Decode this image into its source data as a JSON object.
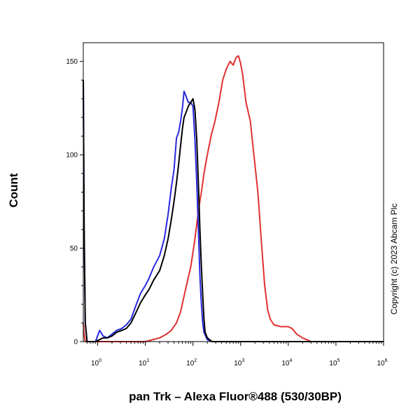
{
  "chart_data": {
    "type": "line",
    "ylabel": "Count",
    "xlabel": "pan Trk – Alexa Fluor®488 (530/30BP)",
    "copyright": "Copyright (c) 2023 Abcam Plc",
    "x_scale": "log",
    "xlim": [
      0.5,
      1000000
    ],
    "ylim": [
      0,
      160
    ],
    "y_ticks": [
      0,
      50,
      100,
      150
    ],
    "x_ticks": [
      {
        "value": 1,
        "base": "10",
        "exp": "0"
      },
      {
        "value": 10,
        "base": "10",
        "exp": "1"
      },
      {
        "value": 100,
        "base": "10",
        "exp": "2"
      },
      {
        "value": 1000,
        "base": "10",
        "exp": "3"
      },
      {
        "value": 10000,
        "base": "10",
        "exp": "4"
      },
      {
        "value": 100000,
        "base": "10",
        "exp": "5"
      },
      {
        "value": 1000000,
        "base": "10",
        "exp": "6"
      }
    ],
    "grid": false,
    "series": [
      {
        "color": "#e03030",
        "points": [
          [
            0.5,
            10
          ],
          [
            0.52,
            4
          ],
          [
            0.55,
            0
          ],
          [
            3,
            0
          ],
          [
            6,
            0
          ],
          [
            10,
            0
          ],
          [
            20,
            2
          ],
          [
            28,
            4
          ],
          [
            35,
            6
          ],
          [
            45,
            10
          ],
          [
            55,
            16
          ],
          [
            70,
            28
          ],
          [
            90,
            40
          ],
          [
            110,
            55
          ],
          [
            130,
            70
          ],
          [
            150,
            80
          ],
          [
            170,
            90
          ],
          [
            200,
            100
          ],
          [
            240,
            110
          ],
          [
            290,
            118
          ],
          [
            350,
            128
          ],
          [
            420,
            140
          ],
          [
            500,
            146
          ],
          [
            600,
            150
          ],
          [
            700,
            148
          ],
          [
            800,
            152
          ],
          [
            900,
            153
          ],
          [
            1000,
            149
          ],
          [
            1100,
            143
          ],
          [
            1300,
            128
          ],
          [
            1600,
            118
          ],
          [
            1900,
            100
          ],
          [
            2300,
            80
          ],
          [
            2700,
            55
          ],
          [
            3200,
            30
          ],
          [
            3700,
            17
          ],
          [
            4200,
            12
          ],
          [
            5000,
            9
          ],
          [
            7000,
            8
          ],
          [
            10000,
            8
          ],
          [
            12000,
            7
          ],
          [
            15000,
            4
          ],
          [
            20000,
            2
          ],
          [
            30000,
            0
          ],
          [
            100000,
            0
          ]
        ]
      },
      {
        "color": "#2828e0",
        "points": [
          [
            0.5,
            140
          ],
          [
            0.52,
            60
          ],
          [
            0.55,
            10
          ],
          [
            0.6,
            0
          ],
          [
            0.9,
            0
          ],
          [
            1.1,
            6
          ],
          [
            1.3,
            3
          ],
          [
            1.6,
            2
          ],
          [
            2,
            4
          ],
          [
            2.5,
            6
          ],
          [
            3.2,
            7
          ],
          [
            4,
            9
          ],
          [
            5,
            12
          ],
          [
            6.5,
            20
          ],
          [
            8,
            26
          ],
          [
            10,
            30
          ],
          [
            12,
            34
          ],
          [
            15,
            40
          ],
          [
            20,
            46
          ],
          [
            25,
            55
          ],
          [
            30,
            68
          ],
          [
            35,
            82
          ],
          [
            40,
            92
          ],
          [
            45,
            109
          ],
          [
            50,
            112
          ],
          [
            55,
            118
          ],
          [
            60,
            125
          ],
          [
            65,
            134
          ],
          [
            70,
            132
          ],
          [
            80,
            128
          ],
          [
            90,
            128
          ],
          [
            100,
            126
          ],
          [
            110,
            108
          ],
          [
            120,
            85
          ],
          [
            130,
            60
          ],
          [
            140,
            35
          ],
          [
            150,
            20
          ],
          [
            160,
            10
          ],
          [
            170,
            5
          ],
          [
            200,
            1
          ],
          [
            250,
            0
          ],
          [
            1000000,
            0
          ]
        ]
      },
      {
        "color": "#000000",
        "points": [
          [
            0.5,
            140
          ],
          [
            0.52,
            60
          ],
          [
            0.55,
            10
          ],
          [
            0.6,
            0
          ],
          [
            0.9,
            0
          ],
          [
            1.3,
            2
          ],
          [
            1.6,
            2
          ],
          [
            2,
            3
          ],
          [
            2.5,
            5
          ],
          [
            3.2,
            6
          ],
          [
            4,
            7
          ],
          [
            5,
            10
          ],
          [
            6.5,
            16
          ],
          [
            8,
            21
          ],
          [
            10,
            25
          ],
          [
            12,
            28
          ],
          [
            15,
            33
          ],
          [
            20,
            38
          ],
          [
            25,
            46
          ],
          [
            30,
            55
          ],
          [
            35,
            65
          ],
          [
            40,
            75
          ],
          [
            45,
            85
          ],
          [
            50,
            95
          ],
          [
            55,
            105
          ],
          [
            60,
            114
          ],
          [
            65,
            120
          ],
          [
            70,
            122
          ],
          [
            80,
            126
          ],
          [
            90,
            128
          ],
          [
            100,
            130
          ],
          [
            110,
            124
          ],
          [
            120,
            108
          ],
          [
            130,
            85
          ],
          [
            140,
            60
          ],
          [
            150,
            40
          ],
          [
            160,
            25
          ],
          [
            170,
            12
          ],
          [
            180,
            5
          ],
          [
            200,
            2
          ],
          [
            250,
            0
          ],
          [
            1000000,
            0
          ]
        ]
      }
    ]
  }
}
